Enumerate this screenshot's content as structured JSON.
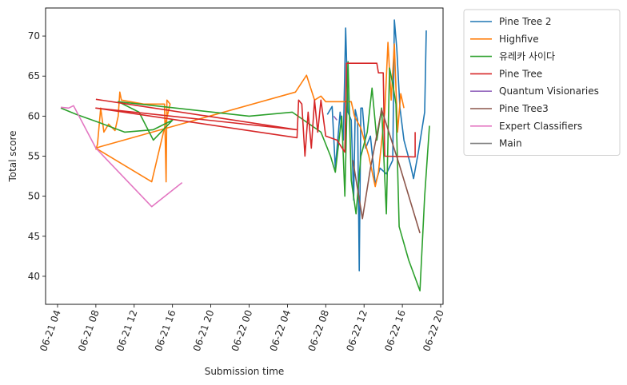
{
  "chart_data": {
    "type": "line",
    "title": "",
    "xlabel": "Submission time",
    "ylabel": "Total score",
    "xlim": [
      "2021-06-21T02:45",
      "2021-06-22T20:15"
    ],
    "ylim": [
      36.5,
      73.5
    ],
    "x_ticks": [
      {
        "t": "2021-06-21T04:00",
        "label": "06-21 04"
      },
      {
        "t": "2021-06-21T08:00",
        "label": "06-21 08"
      },
      {
        "t": "2021-06-21T12:00",
        "label": "06-21 12"
      },
      {
        "t": "2021-06-21T16:00",
        "label": "06-21 16"
      },
      {
        "t": "2021-06-21T20:00",
        "label": "06-21 20"
      },
      {
        "t": "2021-06-22T00:00",
        "label": "06-22 00"
      },
      {
        "t": "2021-06-22T04:00",
        "label": "06-22 04"
      },
      {
        "t": "2021-06-22T08:00",
        "label": "06-22 08"
      },
      {
        "t": "2021-06-22T12:00",
        "label": "06-22 12"
      },
      {
        "t": "2021-06-22T16:00",
        "label": "06-22 16"
      },
      {
        "t": "2021-06-22T20:00",
        "label": "06-22 20"
      }
    ],
    "y_ticks": [
      40,
      45,
      50,
      55,
      60,
      65,
      70
    ],
    "grid": false,
    "legend_position": "outside-right",
    "series": [
      {
        "name": "Pine Tree 2",
        "color": "#1f77b4",
        "points": [
          [
            "2021-06-22T08:10",
            60.2
          ],
          [
            "2021-06-22T08:40",
            61.2
          ],
          [
            "2021-06-22T09:00",
            53.5
          ],
          [
            "2021-06-22T09:30",
            60.5
          ],
          [
            "2021-06-22T09:50",
            57.0
          ],
          [
            "2021-06-22T10:05",
            71.0
          ],
          [
            "2021-06-22T10:20",
            60.5
          ],
          [
            "2021-06-22T10:40",
            59.5
          ],
          [
            "2021-06-22T10:55",
            49.5
          ],
          [
            "2021-06-22T11:05",
            60.8
          ],
          [
            "2021-06-22T11:20",
            59.5
          ],
          [
            "2021-06-22T11:30",
            40.7
          ],
          [
            "2021-06-22T11:40",
            61.0
          ],
          [
            "2021-06-22T11:50",
            61.0
          ],
          [
            "2021-06-22T12:10",
            56.0
          ],
          [
            "2021-06-22T12:40",
            57.5
          ],
          [
            "2021-06-22T13:10",
            51.5
          ],
          [
            "2021-06-22T13:40",
            53.5
          ],
          [
            "2021-06-22T14:20",
            52.8
          ],
          [
            "2021-06-22T15:00",
            54.5
          ],
          [
            "2021-06-22T15:10",
            72.0
          ],
          [
            "2021-06-22T15:25",
            68.5
          ],
          [
            "2021-06-22T15:45",
            61.0
          ],
          [
            "2021-06-22T16:10",
            57.0
          ],
          [
            "2021-06-22T16:50",
            54.0
          ],
          [
            "2021-06-22T17:10",
            52.2
          ],
          [
            "2021-06-22T17:40",
            55.5
          ],
          [
            "2021-06-22T18:20",
            60.5
          ],
          [
            "2021-06-22T18:30",
            70.7
          ]
        ]
      },
      {
        "name": "Highfive",
        "color": "#ff7f0e",
        "points": [
          [
            "2021-06-21T08:00",
            55.8
          ],
          [
            "2021-06-21T08:10",
            56.5
          ],
          [
            "2021-06-21T08:30",
            61.0
          ],
          [
            "2021-06-21T08:50",
            58.0
          ],
          [
            "2021-06-21T09:20",
            59.0
          ],
          [
            "2021-06-21T10:00",
            58.2
          ],
          [
            "2021-06-21T10:20",
            60.0
          ],
          [
            "2021-06-21T10:30",
            63.0
          ],
          [
            "2021-06-21T10:40",
            62.0
          ],
          [
            "2021-06-21T13:00",
            61.5
          ],
          [
            "2021-06-21T15:10",
            61.5
          ],
          [
            "2021-06-21T15:20",
            51.8
          ],
          [
            "2021-06-21T15:25",
            62.0
          ],
          [
            "2021-06-21T15:45",
            61.5
          ],
          [
            "2021-06-21T13:50",
            51.8
          ],
          [
            "2021-06-21T08:00",
            56.0
          ],
          [
            "2021-06-21T08:30",
            56.2
          ],
          [
            "2021-06-22T04:50",
            63.0
          ],
          [
            "2021-06-22T06:00",
            65.1
          ],
          [
            "2021-06-22T06:50",
            62.0
          ],
          [
            "2021-06-22T07:30",
            62.5
          ],
          [
            "2021-06-22T08:00",
            61.8
          ],
          [
            "2021-06-22T10:40",
            61.8
          ],
          [
            "2021-06-22T11:00",
            60.0
          ],
          [
            "2021-06-22T11:40",
            58.5
          ],
          [
            "2021-06-22T12:30",
            55.0
          ],
          [
            "2021-06-22T13:10",
            51.2
          ],
          [
            "2021-06-22T13:30",
            53.0
          ],
          [
            "2021-06-22T14:10",
            60.5
          ],
          [
            "2021-06-22T14:30",
            69.2
          ],
          [
            "2021-06-22T14:50",
            62.0
          ],
          [
            "2021-06-22T15:10",
            69.0
          ],
          [
            "2021-06-22T15:30",
            58.0
          ],
          [
            "2021-06-22T15:50",
            62.8
          ],
          [
            "2021-06-22T16:10",
            61.0
          ]
        ]
      },
      {
        "name": "유레카 사이다",
        "color": "#2ca02c",
        "points": [
          [
            "2021-06-21T04:20",
            61.0
          ],
          [
            "2021-06-21T06:00",
            60.2
          ],
          [
            "2021-06-21T08:20",
            59.2
          ],
          [
            "2021-06-21T11:00",
            58.0
          ],
          [
            "2021-06-21T14:00",
            58.3
          ],
          [
            "2021-06-21T16:00",
            59.5
          ],
          [
            "2021-06-21T14:00",
            57.0
          ],
          [
            "2021-06-21T12:30",
            60.5
          ],
          [
            "2021-06-21T10:20",
            61.8
          ],
          [
            "2021-06-22T00:00",
            60.0
          ],
          [
            "2021-06-22T04:30",
            60.5
          ],
          [
            "2021-06-22T07:30",
            58.0
          ],
          [
            "2021-06-22T08:30",
            55.0
          ],
          [
            "2021-06-22T09:00",
            53.0
          ],
          [
            "2021-06-22T09:40",
            60.0
          ],
          [
            "2021-06-22T10:00",
            50.0
          ],
          [
            "2021-06-22T10:20",
            66.8
          ],
          [
            "2021-06-22T10:40",
            52.0
          ],
          [
            "2021-06-22T11:10",
            47.8
          ],
          [
            "2021-06-22T11:40",
            55.0
          ],
          [
            "2021-06-22T12:20",
            58.0
          ],
          [
            "2021-06-22T12:50",
            63.5
          ],
          [
            "2021-06-22T13:20",
            57.0
          ],
          [
            "2021-06-22T13:50",
            61.0
          ],
          [
            "2021-06-22T14:20",
            47.8
          ],
          [
            "2021-06-22T14:40",
            66.0
          ],
          [
            "2021-06-22T15:00",
            64.0
          ],
          [
            "2021-06-22T15:20",
            61.5
          ],
          [
            "2021-06-22T15:40",
            46.2
          ],
          [
            "2021-06-22T16:40",
            42.0
          ],
          [
            "2021-06-22T17:50",
            38.2
          ],
          [
            "2021-06-22T18:20",
            50.0
          ],
          [
            "2021-06-22T18:50",
            58.8
          ]
        ]
      },
      {
        "name": "Pine Tree",
        "color": "#d62728",
        "points": [
          [
            "2021-06-21T08:00",
            62.1
          ],
          [
            "2021-06-22T05:00",
            58.3
          ],
          [
            "2021-06-21T08:00",
            61.0
          ],
          [
            "2021-06-22T05:00",
            57.3
          ],
          [
            "2021-06-22T05:10",
            62.0
          ],
          [
            "2021-06-22T05:30",
            61.5
          ],
          [
            "2021-06-22T05:50",
            55.0
          ],
          [
            "2021-06-22T06:10",
            60.5
          ],
          [
            "2021-06-22T06:30",
            56.0
          ],
          [
            "2021-06-22T06:50",
            62.0
          ],
          [
            "2021-06-22T07:10",
            58.0
          ],
          [
            "2021-06-22T07:30",
            62.0
          ],
          [
            "2021-06-22T08:00",
            57.5
          ],
          [
            "2021-06-22T09:10",
            57.0
          ],
          [
            "2021-06-22T10:00",
            55.5
          ],
          [
            "2021-06-22T10:10",
            66.6
          ],
          [
            "2021-06-22T13:20",
            66.6
          ],
          [
            "2021-06-22T13:30",
            65.4
          ],
          [
            "2021-06-22T14:00",
            65.4
          ],
          [
            "2021-06-22T14:10",
            55.0
          ],
          [
            "2021-06-22T17:20",
            54.9
          ],
          [
            "2021-06-22T17:20",
            58.0
          ]
        ]
      },
      {
        "name": "Quantum Visionaries",
        "color": "#9467bd",
        "points": [
          [
            "2021-06-22T08:50",
            60.0
          ],
          [
            "2021-06-22T09:10",
            59.5
          ]
        ]
      },
      {
        "name": "Pine Tree3",
        "color": "#8c564b",
        "points": [
          [
            "2021-06-22T10:50",
            54.5
          ],
          [
            "2021-06-22T11:50",
            47.2
          ],
          [
            "2021-06-22T12:40",
            53.5
          ],
          [
            "2021-06-22T13:50",
            60.8
          ],
          [
            "2021-06-22T15:40",
            54.0
          ],
          [
            "2021-06-22T17:50",
            45.4
          ]
        ]
      },
      {
        "name": "Expert Classifiers",
        "color": "#e377c2",
        "points": [
          [
            "2021-06-21T04:20",
            61.1
          ],
          [
            "2021-06-21T05:10",
            61.0
          ],
          [
            "2021-06-21T05:40",
            61.3
          ],
          [
            "2021-06-21T08:00",
            56.0
          ],
          [
            "2021-06-21T13:50",
            48.7
          ],
          [
            "2021-06-21T17:00",
            51.7
          ]
        ]
      },
      {
        "name": "Main",
        "color": "#7f7f7f",
        "points": []
      }
    ]
  }
}
